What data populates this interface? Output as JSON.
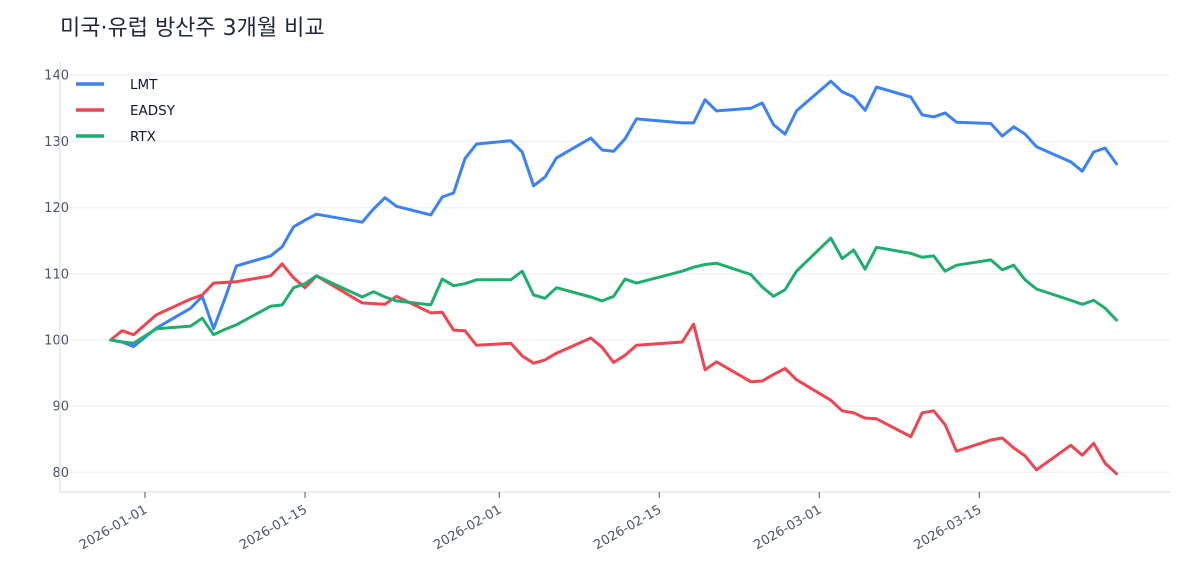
{
  "chart_data": {
    "type": "line",
    "title": "미국·유럽 방산주 3개월 비교",
    "xlabel": "",
    "ylabel": "",
    "ylim": [
      77,
      142
    ],
    "yticks": [
      80,
      90,
      100,
      110,
      120,
      130,
      140
    ],
    "xticks": [
      "2026-01-01",
      "2026-01-15",
      "2026-02-01",
      "2026-02-15",
      "2026-03-01",
      "2026-03-15"
    ],
    "grid": "horizontal",
    "legend_position": "top-left",
    "x": [
      "2025-12-29",
      "2025-12-30",
      "2025-12-31",
      "2026-01-02",
      "2026-01-05",
      "2026-01-06",
      "2026-01-07",
      "2026-01-08",
      "2026-01-09",
      "2026-01-12",
      "2026-01-13",
      "2026-01-14",
      "2026-01-15",
      "2026-01-16",
      "2026-01-20",
      "2026-01-21",
      "2026-01-22",
      "2026-01-23",
      "2026-01-26",
      "2026-01-27",
      "2026-01-28",
      "2026-01-29",
      "2026-01-30",
      "2026-02-02",
      "2026-02-03",
      "2026-02-04",
      "2026-02-05",
      "2026-02-06",
      "2026-02-09",
      "2026-02-10",
      "2026-02-11",
      "2026-02-12",
      "2026-02-13",
      "2026-02-17",
      "2026-02-18",
      "2026-02-19",
      "2026-02-20",
      "2026-02-23",
      "2026-02-24",
      "2026-02-25",
      "2026-02-26",
      "2026-02-27",
      "2026-03-02",
      "2026-03-03",
      "2026-03-04",
      "2026-03-05",
      "2026-03-06",
      "2026-03-09",
      "2026-03-10",
      "2026-03-11",
      "2026-03-12",
      "2026-03-13",
      "2026-03-16",
      "2026-03-17",
      "2026-03-18",
      "2026-03-19",
      "2026-03-20",
      "2026-03-23",
      "2026-03-24",
      "2026-03-25",
      "2026-03-26",
      "2026-03-27"
    ],
    "series": [
      {
        "name": "LMT",
        "color": "#3b82f6",
        "values": [
          100.0,
          99.7,
          99.0,
          101.8,
          104.8,
          106.6,
          101.7,
          106.3,
          111.2,
          112.7,
          114.1,
          117.1,
          118.1,
          119.0,
          117.8,
          119.8,
          121.5,
          120.2,
          118.9,
          121.6,
          122.2,
          127.4,
          129.6,
          130.1,
          128.4,
          123.3,
          124.6,
          127.5,
          130.5,
          128.7,
          128.5,
          130.4,
          133.4,
          132.8,
          132.8,
          136.3,
          134.6,
          135.0,
          135.8,
          132.5,
          131.1,
          134.6,
          139.1,
          137.5,
          136.7,
          134.7,
          138.2,
          136.7,
          134.0,
          133.7,
          134.3,
          132.9,
          132.7,
          130.8,
          132.2,
          131.1,
          129.2,
          126.9,
          125.5,
          128.4,
          129.0,
          126.6
        ]
      },
      {
        "name": "EADSY",
        "color": "#ef4452",
        "values": [
          100.0,
          101.4,
          100.8,
          103.8,
          106.2,
          106.8,
          108.6,
          108.7,
          108.8,
          109.7,
          111.5,
          109.4,
          107.9,
          109.7,
          105.6,
          105.5,
          105.4,
          106.6,
          104.1,
          104.2,
          101.5,
          101.4,
          99.2,
          99.5,
          97.6,
          96.5,
          97.0,
          98.0,
          100.3,
          98.9,
          96.6,
          97.7,
          99.2,
          99.7,
          102.4,
          95.5,
          96.7,
          93.7,
          93.8,
          94.8,
          95.7,
          94.0,
          90.9,
          89.3,
          89.0,
          88.2,
          88.1,
          85.4,
          89.0,
          89.3,
          87.2,
          83.2,
          84.9,
          85.2,
          83.7,
          82.5,
          80.4,
          84.1,
          82.6,
          84.4,
          81.4,
          79.8
        ]
      },
      {
        "name": "RTX",
        "color": "#1fae6e",
        "values": [
          100.0,
          99.7,
          99.5,
          101.7,
          102.1,
          103.3,
          100.8,
          101.6,
          102.3,
          105.1,
          105.3,
          107.9,
          108.5,
          109.7,
          106.5,
          107.3,
          106.5,
          105.9,
          105.3,
          109.2,
          108.2,
          108.5,
          109.1,
          109.1,
          110.4,
          106.8,
          106.3,
          107.9,
          106.5,
          105.9,
          106.6,
          109.2,
          108.6,
          110.4,
          111.0,
          111.4,
          111.6,
          109.9,
          108.0,
          106.6,
          107.6,
          110.4,
          115.4,
          112.3,
          113.6,
          110.7,
          114.0,
          113.1,
          112.5,
          112.7,
          110.4,
          111.3,
          112.1,
          110.6,
          111.3,
          109.1,
          107.7,
          106.0,
          105.4,
          106.0,
          104.8,
          103.0
        ]
      }
    ]
  }
}
